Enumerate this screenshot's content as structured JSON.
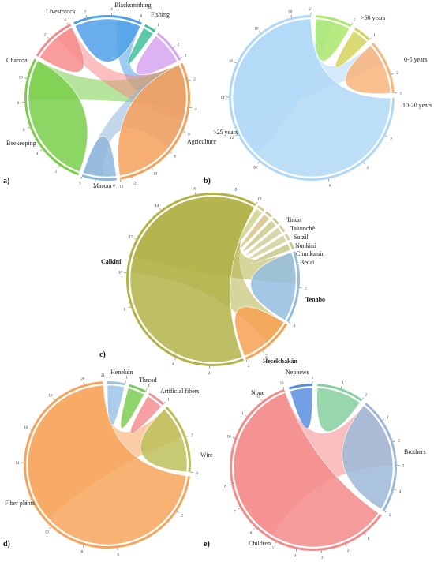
{
  "chart_data": [
    {
      "panel": "a)",
      "type": "chord",
      "nodes": [
        {
          "name": "Livestotock",
          "value": 6,
          "color": "#4f9fe8"
        },
        {
          "name": "Blacksmithing",
          "value": 1,
          "color": "#3fbf9a"
        },
        {
          "name": "Fishing",
          "value": 3,
          "color": "#d6a4f0"
        },
        {
          "name": "Agriculture",
          "value": 13,
          "color": "#f6a05a"
        },
        {
          "name": "Masonry",
          "value": 3,
          "color": "#8fb7dc"
        },
        {
          "name": "Beekeeping",
          "value": 12,
          "color": "#79cf4a"
        },
        {
          "name": "Charcoal",
          "value": 4,
          "color": "#f78b8b"
        }
      ],
      "labels": [
        "Livestotock",
        "Blacksmithing",
        "Fishing",
        "Agriculture",
        "Masonry",
        "Beekeeping",
        "Charcoal"
      ],
      "ticks": [
        {
          "t": "2",
          "node": "Livestotock",
          "frac": 0.2
        },
        {
          "t": "4",
          "node": "Livestotock",
          "frac": 0.55
        },
        {
          "t": "6",
          "node": "Livestotock",
          "frac": 0.95
        },
        {
          "t": "1",
          "node": "Blacksmithing",
          "frac": 0.9
        },
        {
          "t": "2",
          "node": "Fishing",
          "frac": 0.6
        },
        {
          "t": "3",
          "node": "Fishing",
          "frac": 0.95
        },
        {
          "t": "2",
          "node": "Agriculture",
          "frac": 0.12
        },
        {
          "t": "4",
          "node": "Agriculture",
          "frac": 0.3
        },
        {
          "t": "6",
          "node": "Agriculture",
          "frac": 0.46
        },
        {
          "t": "8",
          "node": "Agriculture",
          "frac": 0.62
        },
        {
          "t": "10",
          "node": "Agriculture",
          "frac": 0.78
        },
        {
          "t": "12",
          "node": "Agriculture",
          "frac": 0.92
        },
        {
          "t": "13",
          "node": "Agriculture",
          "frac": 1.0
        },
        {
          "t": "2",
          "node": "Masonry",
          "frac": 0.6
        },
        {
          "t": "3",
          "node": "Masonry",
          "frac": 1.0
        },
        {
          "t": "2",
          "node": "Beekeeping",
          "frac": 0.15
        },
        {
          "t": "4",
          "node": "Beekeeping",
          "frac": 0.32
        },
        {
          "t": "6",
          "node": "Beekeeping",
          "frac": 0.5
        },
        {
          "t": "8",
          "node": "Beekeeping",
          "frac": 0.68
        },
        {
          "t": "10",
          "node": "Beekeeping",
          "frac": 0.85
        },
        {
          "t": "2",
          "node": "Charcoal",
          "frac": 0.45
        },
        {
          "t": "4",
          "node": "Charcoal",
          "frac": 0.95
        }
      ]
    },
    {
      "panel": "b)",
      "type": "chord",
      "nodes": [
        {
          "name": ">50 years",
          "value": 2,
          "color": "#a8e86a"
        },
        {
          "name": "0-5 years",
          "value": 1,
          "color": "#d4d25a"
        },
        {
          "name": "10-20 years",
          "value": 3,
          "color": "#f9b47a"
        },
        {
          "name": ">25 years",
          "value": 21,
          "color": "#b0d8f6"
        }
      ],
      "labels": [
        ">50 years",
        "0-5 years",
        "10-20 years",
        ">25 years"
      ],
      "ticks": [
        {
          "t": "2",
          "node": ">50 years",
          "frac": 1.0
        },
        {
          "t": "1",
          "node": "0-5 years",
          "frac": 1.0
        },
        {
          "t": "2",
          "node": "10-20 years",
          "frac": 0.66
        },
        {
          "t": "3",
          "node": "10-20 years",
          "frac": 1.0
        },
        {
          "t": "2",
          "node": ">25 years",
          "frac": 0.1
        },
        {
          "t": "4",
          "node": ">25 years",
          "frac": 0.19
        },
        {
          "t": "6",
          "node": ">25 years",
          "frac": 0.29
        },
        {
          "t": "10",
          "node": ">25 years",
          "frac": 0.48
        },
        {
          "t": "12",
          "node": ">25 years",
          "frac": 0.57
        },
        {
          "t": "14",
          "node": ">25 years",
          "frac": 0.67
        },
        {
          "t": "16",
          "node": ">25 years",
          "frac": 0.76
        },
        {
          "t": "18",
          "node": ">25 years",
          "frac": 0.86
        },
        {
          "t": "20",
          "node": ">25 years",
          "frac": 0.95
        },
        {
          "t": "21",
          "node": ">25 years",
          "frac": 1.0
        }
      ]
    },
    {
      "panel": "c)",
      "type": "chord",
      "nodes": [
        {
          "name": "Tinún",
          "value": 0.4,
          "color": "#cfd28a"
        },
        {
          "name": "Takunché",
          "value": 0.4,
          "color": "#d9c38a"
        },
        {
          "name": "Sotzil",
          "value": 0.4,
          "color": "#c9c98a"
        },
        {
          "name": "Nunkiní",
          "value": 0.4,
          "color": "#cfcf9a"
        },
        {
          "name": "Chunkanán",
          "value": 0.4,
          "color": "#d0d09a"
        },
        {
          "name": "Bécal",
          "value": 0.4,
          "color": "#c8c88a"
        },
        {
          "name": "Tenabo",
          "value": 4,
          "color": "#94bde0"
        },
        {
          "name": "Hecelchakán",
          "value": 3,
          "color": "#f7a052"
        },
        {
          "name": "Calkiní",
          "value": 19,
          "color": "#b3b34a"
        }
      ],
      "labels": [
        "Tinún",
        "Takunché",
        "Sotzil",
        "Nunkiní",
        "Chunkanán",
        "Bécal",
        "Tenabo",
        "Hecelchakán",
        "Calkiní"
      ],
      "ticks": [
        {
          "t": "2",
          "node": "Tenabo",
          "frac": 0.5
        },
        {
          "t": "4",
          "node": "Tenabo",
          "frac": 1.0
        },
        {
          "t": "2",
          "node": "Hecelchakán",
          "frac": 0.66
        },
        {
          "t": "3",
          "node": "Hecelchakán",
          "frac": 1.0
        },
        {
          "t": "2",
          "node": "Calkiní",
          "frac": 0.1
        },
        {
          "t": "4",
          "node": "Calkiní",
          "frac": 0.2
        },
        {
          "t": "8",
          "node": "Calkiní",
          "frac": 0.4
        },
        {
          "t": "10",
          "node": "Calkiní",
          "frac": 0.5
        },
        {
          "t": "12",
          "node": "Calkiní",
          "frac": 0.6
        },
        {
          "t": "14",
          "node": "Calkiní",
          "frac": 0.71
        },
        {
          "t": "16",
          "node": "Calkiní",
          "frac": 0.82
        },
        {
          "t": "18",
          "node": "Calkiní",
          "frac": 0.93
        },
        {
          "t": "19",
          "node": "Calkiní",
          "frac": 1.0
        }
      ]
    },
    {
      "panel": "d)",
      "type": "chord",
      "nodes": [
        {
          "name": "Henekén",
          "value": 1,
          "color": "#9cc3e6"
        },
        {
          "name": "Thread",
          "value": 1,
          "color": "#7ccd55"
        },
        {
          "name": "Artificial fibers",
          "value": 1,
          "color": "#f48f93"
        },
        {
          "name": "Wire",
          "value": 4,
          "color": "#bdbf5a"
        },
        {
          "name": "Fiber plants",
          "value": 21,
          "color": "#f6a45c"
        }
      ],
      "labels": [
        "Henekén",
        "Thread",
        "Artificial fibers",
        "Wire",
        "Fiber plants"
      ],
      "ticks": [
        {
          "t": "1",
          "node": "Henekén",
          "frac": 1.0
        },
        {
          "t": "1",
          "node": "Thread",
          "frac": 1.0
        },
        {
          "t": "1",
          "node": "Artificial fibers",
          "frac": 1.0
        },
        {
          "t": "2",
          "node": "Wire",
          "frac": 0.5
        },
        {
          "t": "4",
          "node": "Wire",
          "frac": 1.0
        },
        {
          "t": "2",
          "node": "Fiber plants",
          "frac": 0.1
        },
        {
          "t": "6",
          "node": "Fiber plants",
          "frac": 0.29
        },
        {
          "t": "8",
          "node": "Fiber plants",
          "frac": 0.38
        },
        {
          "t": "10",
          "node": "Fiber plants",
          "frac": 0.48
        },
        {
          "t": "12",
          "node": "Fiber plants",
          "frac": 0.57
        },
        {
          "t": "14",
          "node": "Fiber plants",
          "frac": 0.67
        },
        {
          "t": "16",
          "node": "Fiber plants",
          "frac": 0.76
        },
        {
          "t": "18",
          "node": "Fiber plants",
          "frac": 0.86
        },
        {
          "t": "20",
          "node": "Fiber plants",
          "frac": 0.95
        },
        {
          "t": "21",
          "node": "Fiber plants",
          "frac": 1.0
        }
      ]
    },
    {
      "panel": "e)",
      "type": "chord",
      "nodes": [
        {
          "name": "Nephews",
          "value": 2,
          "color": "#86cfa0"
        },
        {
          "name": "Brothers",
          "value": 5,
          "color": "#9db8d8"
        },
        {
          "name": "Children",
          "value": 13,
          "color": "#f48a8a"
        },
        {
          "name": "None",
          "value": 1,
          "color": "#5a8fe0"
        }
      ],
      "labels": [
        "Nephews",
        "Brothers",
        "Children",
        "None"
      ],
      "ticks": [
        {
          "t": "1",
          "node": "Nephews",
          "frac": 0.5
        },
        {
          "t": "2",
          "node": "Nephews",
          "frac": 1.0
        },
        {
          "t": "1",
          "node": "Brothers",
          "frac": 0.2
        },
        {
          "t": "2",
          "node": "Brothers",
          "frac": 0.4
        },
        {
          "t": "3",
          "node": "Brothers",
          "frac": 0.6
        },
        {
          "t": "4",
          "node": "Brothers",
          "frac": 0.8
        },
        {
          "t": "5",
          "node": "Brothers",
          "frac": 1.0
        },
        {
          "t": "1",
          "node": "Children",
          "frac": 0.08
        },
        {
          "t": "2",
          "node": "Children",
          "frac": 0.15
        },
        {
          "t": "3",
          "node": "Children",
          "frac": 0.23
        },
        {
          "t": "4",
          "node": "Children",
          "frac": 0.31
        },
        {
          "t": "5",
          "node": "Children",
          "frac": 0.38
        },
        {
          "t": "6",
          "node": "Children",
          "frac": 0.46
        },
        {
          "t": "7",
          "node": "Children",
          "frac": 0.54
        },
        {
          "t": "8",
          "node": "Children",
          "frac": 0.62
        },
        {
          "t": "10",
          "node": "Children",
          "frac": 0.77
        },
        {
          "t": "11",
          "node": "Children",
          "frac": 0.85
        },
        {
          "t": "12",
          "node": "Children",
          "frac": 0.92
        },
        {
          "t": "13",
          "node": "Children",
          "frac": 1.0
        },
        {
          "t": "1",
          "node": "None",
          "frac": 1.0
        }
      ]
    }
  ]
}
